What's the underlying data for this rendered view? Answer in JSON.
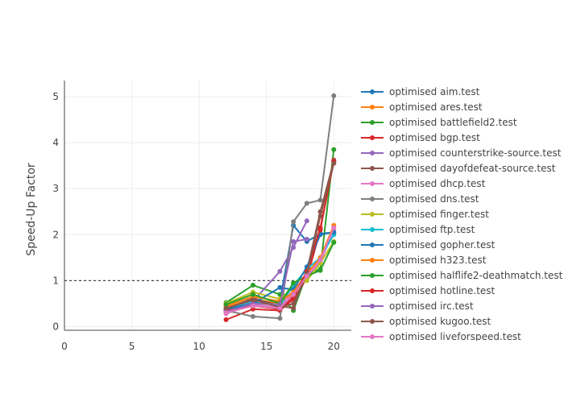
{
  "chart_data": {
    "type": "line",
    "ylabel": "Speed-Up Factor",
    "xlabel": "",
    "xlim": [
      0,
      21.3
    ],
    "ylim": [
      -0.08,
      5.35
    ],
    "xticks": [
      0,
      5,
      10,
      15,
      20
    ],
    "yticks": [
      0,
      1,
      2,
      3,
      4,
      5
    ],
    "reference_line": {
      "y": 1,
      "style": "dotted"
    },
    "grid": true,
    "legend_position": "right",
    "x": [
      12,
      14,
      16,
      17,
      18,
      19,
      20
    ],
    "series": [
      {
        "name": "optimised aim.test",
        "color": "#1f77b4",
        "values": [
          0.4,
          0.52,
          0.55,
          2.2,
          1.85,
          2.02,
          2.05
        ]
      },
      {
        "name": "optimised ares.test",
        "color": "#ff7f0e",
        "values": [
          0.42,
          0.6,
          0.5,
          0.72,
          1.05,
          1.45,
          2.2
        ]
      },
      {
        "name": "optimised battlefield2.test",
        "color": "#2ca02c",
        "values": [
          0.52,
          0.9,
          0.7,
          0.35,
          1.15,
          1.25,
          3.85
        ]
      },
      {
        "name": "optimised bgp.test",
        "color": "#d62728",
        "values": [
          0.15,
          0.38,
          0.35,
          0.6,
          1.05,
          2.1,
          3.62
        ]
      },
      {
        "name": "optimised counterstrike-source.test",
        "color": "#9467bd",
        "values": [
          0.3,
          0.55,
          1.2,
          1.72,
          2.3,
          null,
          null
        ]
      },
      {
        "name": "optimised dayofdefeat-source.test",
        "color": "#8c564b",
        "values": [
          0.38,
          0.62,
          0.45,
          0.4,
          1.2,
          2.5,
          3.6
        ]
      },
      {
        "name": "optimised dhcp.test",
        "color": "#e377c2",
        "values": [
          0.28,
          0.48,
          0.42,
          0.8,
          1.1,
          1.4,
          2.1
        ]
      },
      {
        "name": "optimised dns.test",
        "color": "#7f7f7f",
        "values": [
          0.35,
          0.22,
          0.18,
          2.28,
          2.68,
          2.75,
          5.02
        ]
      },
      {
        "name": "optimised finger.test",
        "color": "#bcbd22",
        "values": [
          0.5,
          0.75,
          0.6,
          0.85,
          1.0,
          1.38,
          1.85
        ]
      },
      {
        "name": "optimised ftp.test",
        "color": "#17becf",
        "values": [
          0.4,
          0.55,
          0.45,
          0.9,
          1.25,
          1.5,
          2.0
        ]
      },
      {
        "name": "optimised gopher.test",
        "color": "#1f77b4",
        "values": [
          0.38,
          0.5,
          0.85,
          0.8,
          1.3,
          2.0,
          2.05
        ]
      },
      {
        "name": "optimised h323.test",
        "color": "#ff7f0e",
        "values": [
          0.45,
          0.65,
          0.55,
          0.75,
          1.15,
          1.5,
          2.2
        ]
      },
      {
        "name": "optimised halflife2-deathmatch.test",
        "color": "#2ca02c",
        "values": [
          0.48,
          0.7,
          0.5,
          0.95,
          1.1,
          1.22,
          1.83
        ]
      },
      {
        "name": "optimised hotline.test",
        "color": "#d62728",
        "values": [
          0.35,
          0.45,
          0.38,
          0.65,
          1.2,
          2.15,
          3.58
        ]
      },
      {
        "name": "optimised irc.test",
        "color": "#9467bd",
        "values": [
          0.32,
          0.5,
          0.48,
          1.85,
          1.9,
          null,
          null
        ]
      },
      {
        "name": "optimised kugoo.test",
        "color": "#8c564b",
        "values": [
          0.4,
          0.58,
          0.42,
          0.5,
          1.15,
          2.4,
          3.55
        ]
      },
      {
        "name": "optimised liveforspeed.test",
        "color": "#e377c2",
        "values": [
          0.3,
          0.45,
          0.4,
          0.7,
          1.1,
          1.45,
          2.15
        ]
      }
    ]
  }
}
